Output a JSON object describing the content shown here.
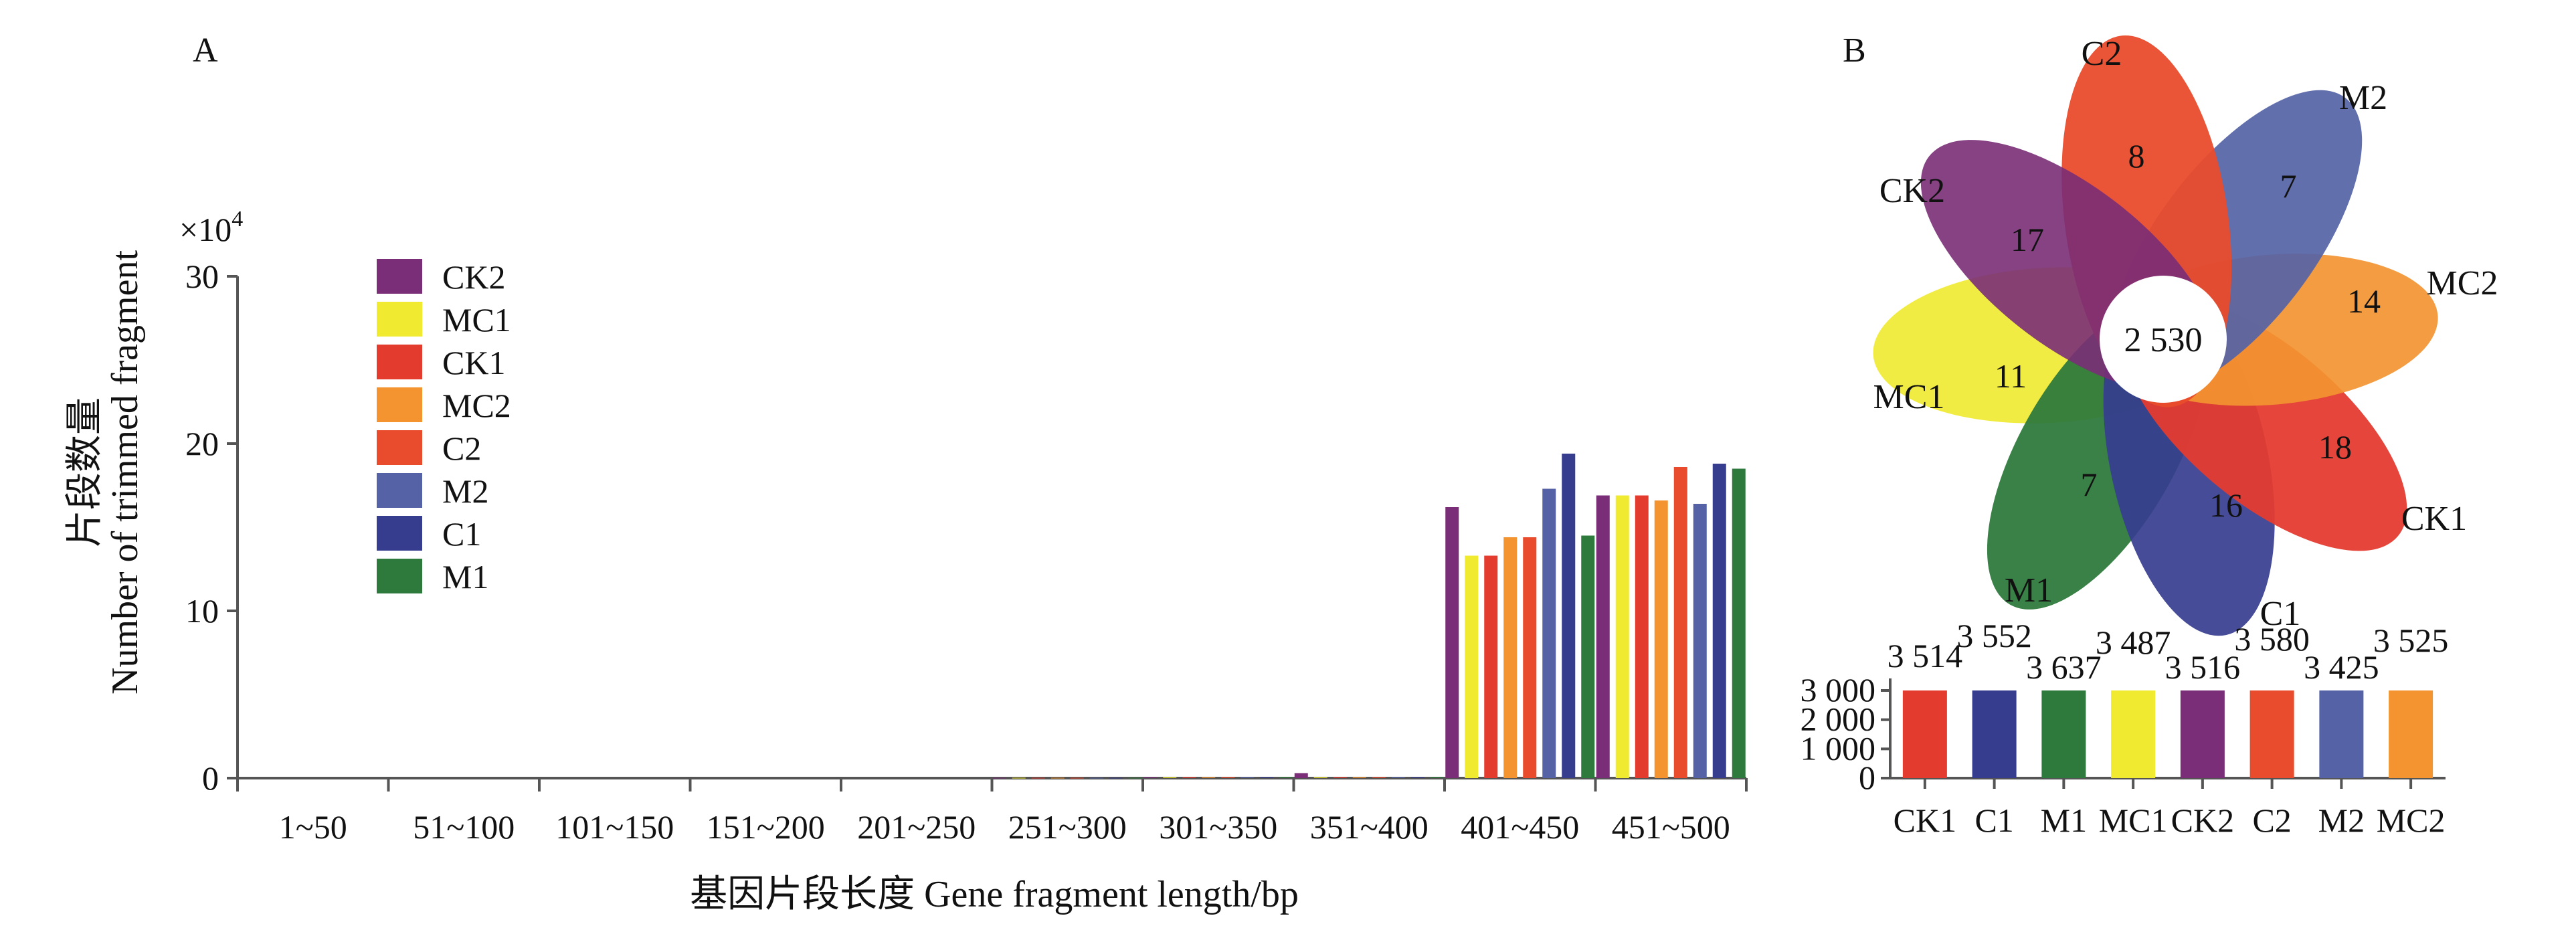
{
  "colors": {
    "CK2": "#7a2e77",
    "MC1": "#f0ea30",
    "CK1": "#e43b2f",
    "MC2": "#f39431",
    "C2": "#e94c2c",
    "M2": "#5563a6",
    "C1": "#363d8f",
    "M1": "#2e7a3c",
    "axis": "#555555"
  },
  "panelA": {
    "letter": "A",
    "exponent_base": "×10",
    "exponent_power": "4"
  },
  "panelB": {
    "letter": "B",
    "center_value": "2 530"
  },
  "chart_data": [
    {
      "type": "bar",
      "panel": "A",
      "xlabel": "基因片段长度 Gene fragment length/bp",
      "ylabel_zh": "片段数量",
      "ylabel_en": "Number of trimmed fragment",
      "y_multiplier": "×10^4",
      "ylim": [
        0,
        30
      ],
      "yticks": [
        0,
        10,
        20,
        30
      ],
      "grid": false,
      "legend_position": "upper-left",
      "categories": [
        "1~50",
        "51~100",
        "101~150",
        "151~200",
        "201~250",
        "251~300",
        "301~350",
        "351~400",
        "401~450",
        "451~500"
      ],
      "series": [
        {
          "name": "CK2",
          "values": [
            0,
            0,
            0,
            0,
            0,
            0.02,
            0.05,
            0.3,
            16.2,
            16.9
          ]
        },
        {
          "name": "MC1",
          "values": [
            0,
            0,
            0,
            0,
            0,
            0.02,
            0.05,
            0.05,
            13.3,
            16.9
          ]
        },
        {
          "name": "CK1",
          "values": [
            0,
            0,
            0,
            0,
            0,
            0.02,
            0.05,
            0.05,
            13.3,
            16.9
          ]
        },
        {
          "name": "MC2",
          "values": [
            0,
            0,
            0,
            0,
            0,
            0.02,
            0.05,
            0.05,
            14.4,
            16.6
          ]
        },
        {
          "name": "C2",
          "values": [
            0,
            0,
            0,
            0,
            0,
            0.02,
            0.05,
            0.05,
            14.4,
            18.6
          ]
        },
        {
          "name": "M2",
          "values": [
            0,
            0,
            0,
            0,
            0,
            0.02,
            0.05,
            0.05,
            17.3,
            16.4
          ]
        },
        {
          "name": "C1",
          "values": [
            0,
            0,
            0,
            0,
            0,
            0.02,
            0.05,
            0.05,
            19.4,
            18.8
          ]
        },
        {
          "name": "M1",
          "values": [
            0,
            0,
            0,
            0,
            0,
            0.02,
            0.05,
            0.05,
            14.5,
            18.5
          ]
        }
      ]
    },
    {
      "type": "venn",
      "panel": "B",
      "core_value": "2 530",
      "sets": [
        {
          "name": "C2",
          "unique": "8"
        },
        {
          "name": "M2",
          "unique": "7"
        },
        {
          "name": "MC2",
          "unique": "14"
        },
        {
          "name": "CK1",
          "unique": "18"
        },
        {
          "name": "C1",
          "unique": "16"
        },
        {
          "name": "M1",
          "unique": "7"
        },
        {
          "name": "MC1",
          "unique": "11"
        },
        {
          "name": "CK2",
          "unique": "17"
        }
      ]
    },
    {
      "type": "bar",
      "panel": "B",
      "ylim": [
        0,
        3000
      ],
      "yticks": [
        "0",
        "1 000",
        "2 000",
        "3 000"
      ],
      "categories": [
        "CK1",
        "C1",
        "M1",
        "MC1",
        "CK2",
        "C2",
        "M2",
        "MC2"
      ],
      "values": [
        3514,
        3552,
        3637,
        3487,
        3516,
        3580,
        3425,
        3525
      ],
      "value_labels": [
        "3 514",
        "3 552",
        "3 637",
        "3 487",
        "3 516",
        "3 580",
        "3 425",
        "3 525"
      ],
      "color_keys": [
        "CK1",
        "C1",
        "M1",
        "MC1",
        "CK2",
        "C2",
        "M2",
        "MC2"
      ]
    }
  ]
}
